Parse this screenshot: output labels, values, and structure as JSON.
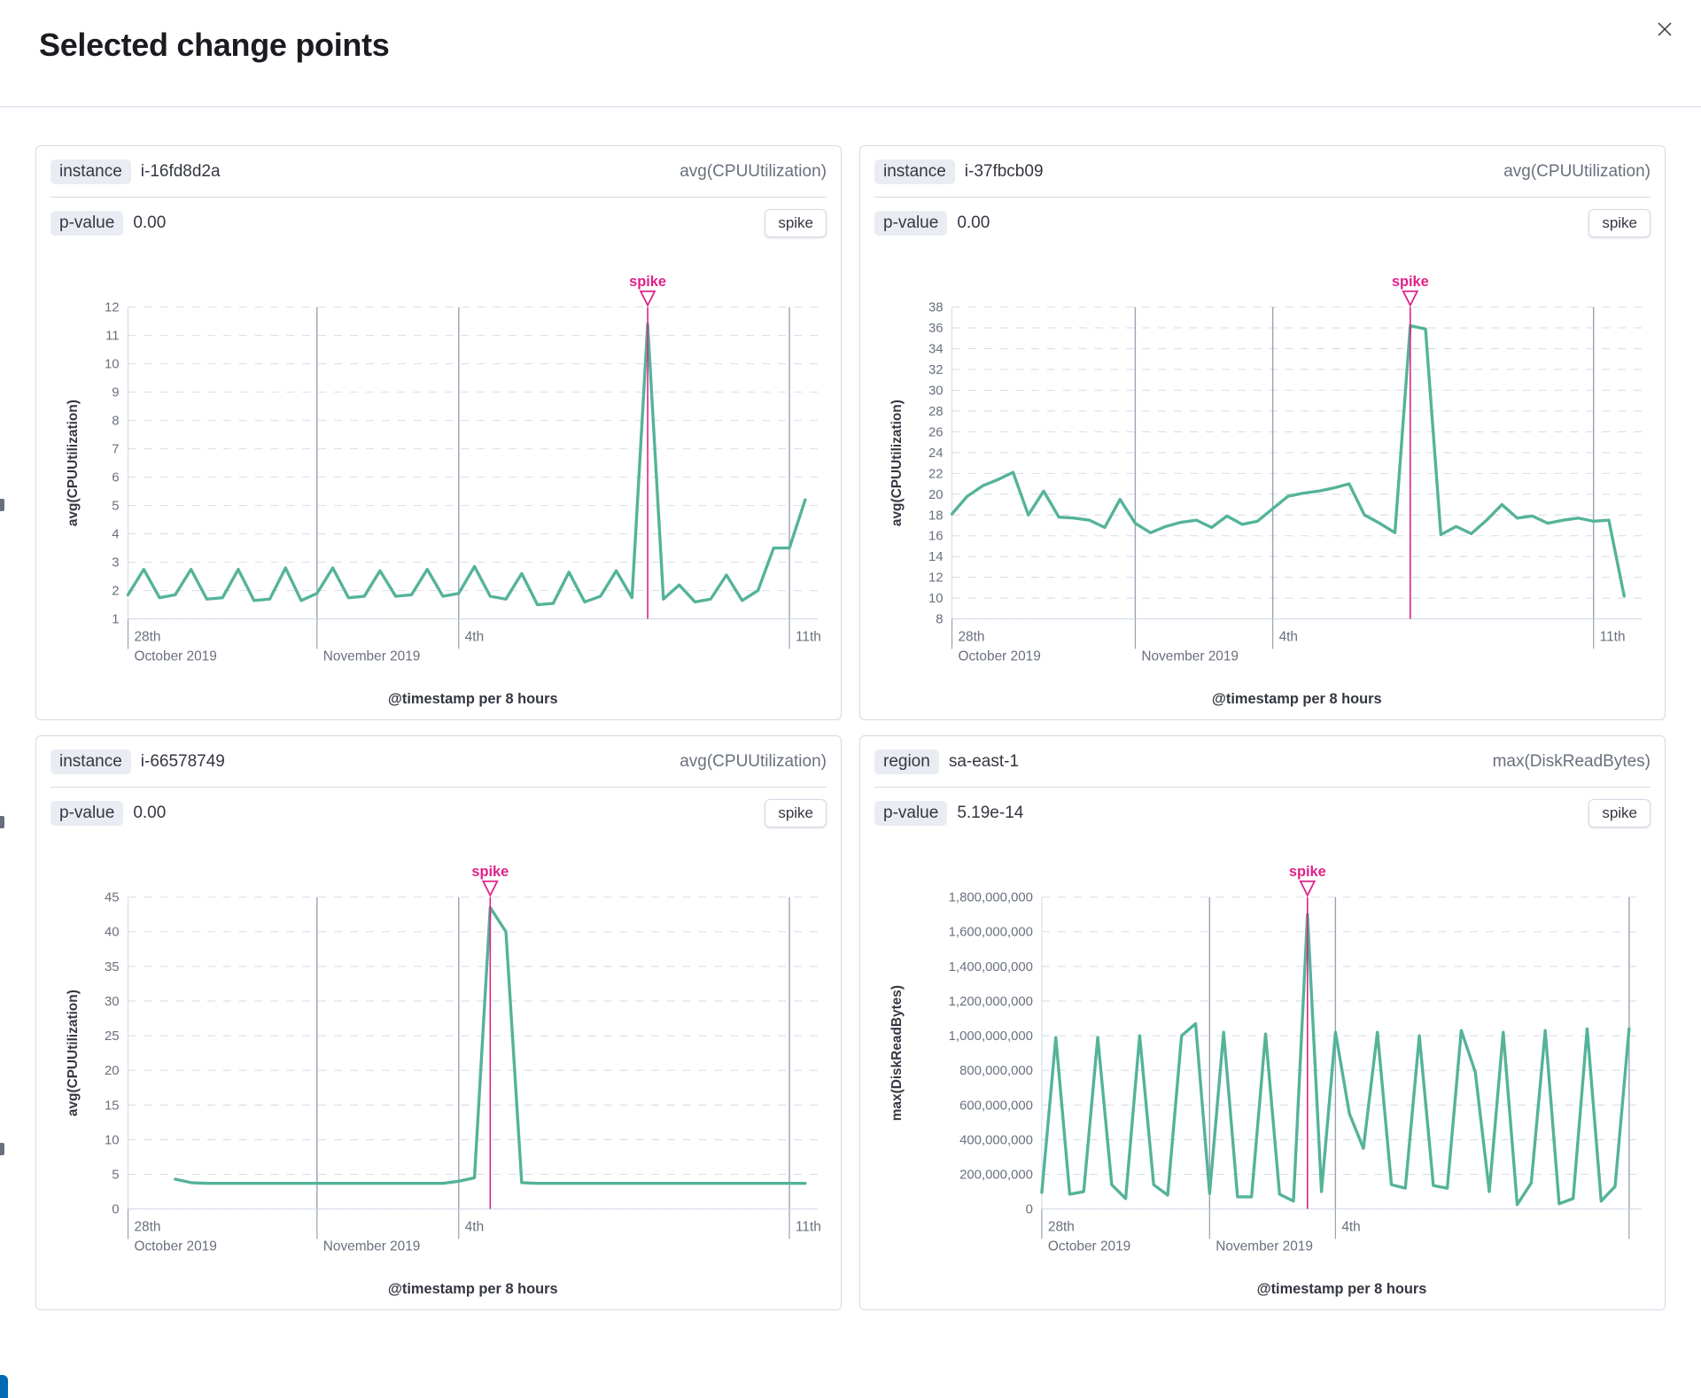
{
  "modal": {
    "title": "Selected change points"
  },
  "colors": {
    "accent": "#e0218a",
    "series_line": "#54b399",
    "gridline": "#d8dde8",
    "marker_line": "#98a2b3",
    "axis": "#d3dae6",
    "text_muted": "#69707d",
    "text_strong": "#343741"
  },
  "panels": [
    {
      "field_label": "instance",
      "field_value": "i-16fd8d2a",
      "metric": "avg(CPUUtilization)",
      "p_label": "p-value",
      "p_value": "0.00",
      "type_badge": "spike"
    },
    {
      "field_label": "instance",
      "field_value": "i-37fbcb09",
      "metric": "avg(CPUUtilization)",
      "p_label": "p-value",
      "p_value": "0.00",
      "type_badge": "spike"
    },
    {
      "field_label": "instance",
      "field_value": "i-66578749",
      "metric": "avg(CPUUtilization)",
      "p_label": "p-value",
      "p_value": "0.00",
      "type_badge": "spike"
    },
    {
      "field_label": "region",
      "field_value": "sa-east-1",
      "metric": "max(DiskReadBytes)",
      "p_label": "p-value",
      "p_value": "5.19e-14",
      "type_badge": "spike"
    }
  ],
  "chart_data": [
    {
      "type": "line",
      "ylabel": "avg(CPUUtilization)",
      "xlabel": "@timestamp per 8 hours",
      "spike_label": "spike",
      "ylim": [
        1,
        12
      ],
      "y_ticks": [
        1,
        2,
        3,
        4,
        5,
        6,
        7,
        8,
        9,
        10,
        11,
        12
      ],
      "y_tick_labels": [
        "1",
        "2",
        "3",
        "4",
        "5",
        "6",
        "7",
        "8",
        "9",
        "10",
        "11",
        "12"
      ],
      "points_per_day": 3,
      "x_domain_days": [
        0,
        14.6
      ],
      "x_gridline_days": [
        4,
        7,
        14
      ],
      "x_tick_days": [
        0,
        4,
        7,
        14
      ],
      "x_tick_labels": [
        [
          "28th",
          "October 2019"
        ],
        [
          "",
          "November 2019"
        ],
        [
          "4th",
          ""
        ],
        [
          "11th",
          ""
        ]
      ],
      "spike_index": 33,
      "values": [
        1.85,
        2.75,
        1.75,
        1.85,
        2.75,
        1.7,
        1.75,
        2.75,
        1.65,
        1.7,
        2.8,
        1.65,
        1.9,
        2.8,
        1.75,
        1.8,
        2.7,
        1.8,
        1.85,
        2.75,
        1.8,
        1.9,
        2.85,
        1.8,
        1.7,
        2.6,
        1.5,
        1.55,
        2.65,
        1.6,
        1.8,
        2.7,
        1.75,
        11.4,
        1.7,
        2.2,
        1.6,
        1.7,
        2.55,
        1.65,
        2.0,
        3.5,
        3.5,
        5.2
      ]
    },
    {
      "type": "line",
      "ylabel": "avg(CPUUtilization)",
      "xlabel": "@timestamp per 8 hours",
      "spike_label": "spike",
      "ylim": [
        8,
        38
      ],
      "y_ticks": [
        8,
        10,
        12,
        14,
        16,
        18,
        20,
        22,
        24,
        26,
        28,
        30,
        32,
        34,
        36,
        38
      ],
      "y_tick_labels": [
        "8",
        "10",
        "12",
        "14",
        "16",
        "18",
        "20",
        "22",
        "24",
        "26",
        "28",
        "30",
        "32",
        "34",
        "36",
        "38"
      ],
      "points_per_day": 3,
      "x_domain_days": [
        0,
        15.05
      ],
      "x_gridline_days": [
        4,
        7,
        14
      ],
      "x_tick_days": [
        0,
        4,
        7,
        14
      ],
      "x_tick_labels": [
        [
          "28th",
          "October 2019"
        ],
        [
          "",
          "November 2019"
        ],
        [
          "4th",
          ""
        ],
        [
          "11th",
          ""
        ]
      ],
      "spike_index": 30,
      "values": [
        18.1,
        19.8,
        20.8,
        21.4,
        22.1,
        18.0,
        20.3,
        17.8,
        17.7,
        17.5,
        16.8,
        19.5,
        17.2,
        16.3,
        16.9,
        17.3,
        17.5,
        16.8,
        17.9,
        17.1,
        17.4,
        18.6,
        19.8,
        20.1,
        20.3,
        20.6,
        21.0,
        18.0,
        17.2,
        16.3,
        36.2,
        35.9,
        16.1,
        16.9,
        16.2,
        17.5,
        19.0,
        17.7,
        17.9,
        17.2,
        17.5,
        17.7,
        17.4,
        17.5,
        10.2
      ]
    },
    {
      "type": "line",
      "ylabel": "avg(CPUUtilization)",
      "xlabel": "@timestamp per 8 hours",
      "spike_label": "spike",
      "ylim": [
        0,
        45
      ],
      "y_ticks": [
        0,
        5,
        10,
        15,
        20,
        25,
        30,
        35,
        40,
        45
      ],
      "y_tick_labels": [
        "0",
        "5",
        "10",
        "15",
        "20",
        "25",
        "30",
        "35",
        "40",
        "45"
      ],
      "points_per_day": 3,
      "x_domain_days": [
        0,
        14.6
      ],
      "x_gridline_days": [
        4,
        7,
        14
      ],
      "x_tick_days": [
        0,
        4,
        7,
        14
      ],
      "x_tick_labels": [
        [
          "28th",
          "October 2019"
        ],
        [
          "",
          "November 2019"
        ],
        [
          "4th",
          ""
        ],
        [
          "11th",
          ""
        ]
      ],
      "spike_index": 23,
      "values": [
        null,
        null,
        null,
        4.3,
        3.8,
        3.7,
        3.7,
        3.7,
        3.7,
        3.7,
        3.7,
        3.7,
        3.7,
        3.7,
        3.7,
        3.7,
        3.7,
        3.7,
        3.7,
        3.7,
        3.7,
        4.0,
        4.5,
        43.5,
        40.0,
        3.8,
        3.7,
        3.7,
        3.7,
        3.7,
        3.7,
        3.7,
        3.7,
        3.7,
        3.7,
        3.7,
        3.7,
        3.7,
        3.7,
        3.7,
        3.7,
        3.7,
        3.7,
        3.7
      ]
    },
    {
      "type": "line",
      "ylabel": "max(DiskReadBytes)",
      "xlabel": "@timestamp per 8 hours",
      "spike_label": "spike",
      "ylim": [
        0,
        1800000000
      ],
      "y_ticks": [
        0,
        200000000,
        400000000,
        600000000,
        800000000,
        1000000000,
        1200000000,
        1400000000,
        1600000000,
        1800000000
      ],
      "y_tick_labels": [
        "0",
        "200,000,000",
        "400,000,000",
        "600,000,000",
        "800,000,000",
        "1,000,000,000",
        "1,200,000,000",
        "1,400,000,000",
        "1,600,000,000",
        "1,800,000,000"
      ],
      "points_per_day": 3,
      "x_domain_days": [
        0,
        14.3
      ],
      "x_gridline_days": [
        4,
        7,
        14
      ],
      "x_tick_days": [
        0,
        4,
        7
      ],
      "x_tick_labels": [
        [
          "28th",
          "October 2019"
        ],
        [
          "",
          "November 2019"
        ],
        [
          "4th",
          ""
        ]
      ],
      "spike_index": 19,
      "values": [
        95000000,
        990000000,
        85000000,
        100000000,
        990000000,
        140000000,
        60000000,
        1000000000,
        140000000,
        80000000,
        1000000000,
        1070000000,
        90000000,
        1020000000,
        70000000,
        70000000,
        1010000000,
        85000000,
        45000000,
        1700000000,
        100000000,
        1020000000,
        550000000,
        350000000,
        1020000000,
        140000000,
        120000000,
        1000000000,
        135000000,
        120000000,
        1030000000,
        790000000,
        100000000,
        1020000000,
        25000000,
        150000000,
        1030000000,
        30000000,
        60000000,
        1040000000,
        45000000,
        130000000,
        1040000000
      ]
    }
  ]
}
